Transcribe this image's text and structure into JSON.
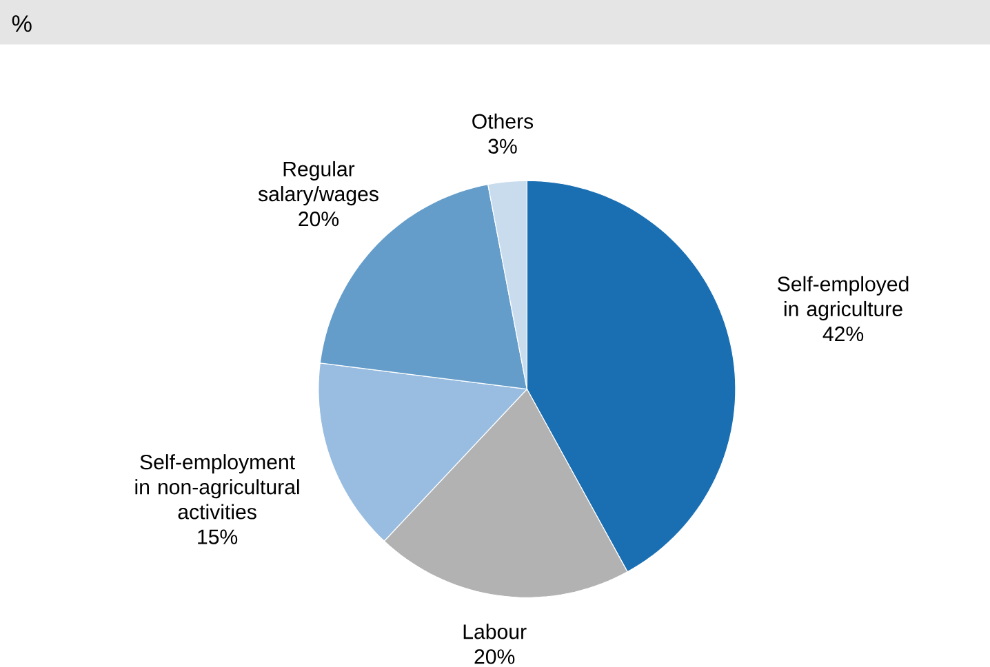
{
  "chart_data": {
    "type": "pie",
    "subtitle": "%",
    "categories": [
      "Self-employed in agriculture",
      "Labour",
      "Self-employment in non-agricultural activities",
      "Regular salary/wages",
      "Others"
    ],
    "values": [
      42,
      20,
      15,
      20,
      3
    ],
    "value_labels": [
      "42%",
      "20%",
      "15%",
      "20%",
      "3%"
    ],
    "colors": [
      "#1a6fb3",
      "#b2b2b2",
      "#99bde0",
      "#659dca",
      "#c9dcee"
    ]
  }
}
